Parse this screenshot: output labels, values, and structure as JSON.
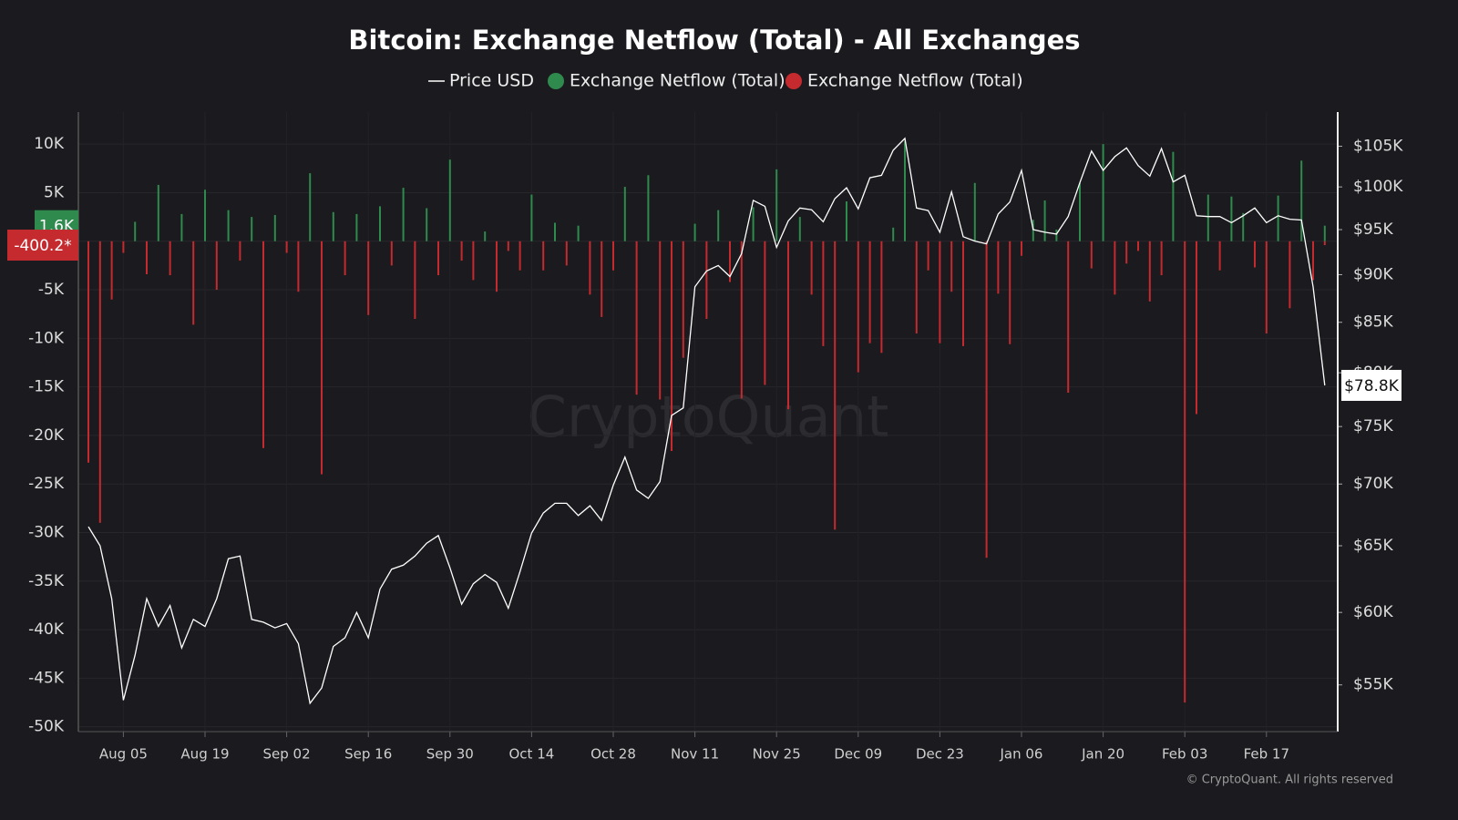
{
  "chart_data": {
    "type": "bar",
    "title": "Bitcoin: Exchange Netflow (Total) - All Exchanges",
    "watermark": "CryptoQuant",
    "footer": "© CryptoQuant. All rights reserved",
    "categories": [
      null,
      null,
      null,
      "Aug 05",
      null,
      null,
      null,
      null,
      null,
      null,
      "Aug 19",
      null,
      null,
      null,
      null,
      null,
      null,
      "Sep 02",
      null,
      null,
      null,
      null,
      null,
      null,
      "Sep 16",
      null,
      null,
      null,
      null,
      null,
      null,
      "Sep 30",
      null,
      null,
      null,
      null,
      null,
      null,
      "Oct 14",
      null,
      null,
      null,
      null,
      null,
      null,
      "Oct 28",
      null,
      null,
      null,
      null,
      null,
      null,
      "Nov 11",
      null,
      null,
      null,
      null,
      null,
      null,
      "Nov 25",
      null,
      null,
      null,
      null,
      null,
      null,
      "Dec 09",
      null,
      null,
      null,
      null,
      null,
      null,
      "Dec 23",
      null,
      null,
      null,
      null,
      null,
      null,
      "Jan 06",
      null,
      null,
      null,
      null,
      null,
      null,
      "Jan 20",
      null,
      null,
      null,
      null,
      null,
      null,
      "Feb 03",
      null,
      null,
      null,
      null,
      null,
      null,
      "Feb 17",
      null,
      null,
      null,
      null,
      null
    ],
    "series": [
      {
        "name": "Price USD",
        "type": "line",
        "axis": "y2",
        "color": "#ffffff",
        "values": [
          66500,
          65000,
          61000,
          54000,
          57000,
          61000,
          59000,
          60500,
          57500,
          59500,
          59000,
          61000,
          64000,
          64200,
          59500,
          59300,
          58900,
          59200,
          57800,
          53800,
          54800,
          57600,
          58200,
          60000,
          58200,
          61700,
          63200,
          63500,
          64200,
          65200,
          65800,
          63300,
          60600,
          62100,
          62800,
          62200,
          60300,
          63000,
          66000,
          67600,
          68400,
          68400,
          67400,
          68200,
          67000,
          69900,
          72300,
          69500,
          68800,
          70200,
          76000,
          76700,
          88700,
          90400,
          91000,
          89800,
          92300,
          98400,
          97700,
          93000,
          96000,
          97500,
          97300,
          95900,
          98600,
          99900,
          97400,
          101100,
          101400,
          104500,
          106000,
          97500,
          97200,
          94700,
          99400,
          94200,
          93700,
          93400,
          96800,
          98200,
          102000,
          95000,
          94700,
          94500,
          96500,
          100500,
          104400,
          102000,
          103700,
          104800,
          102600,
          101300,
          104700,
          100600,
          101400,
          96600,
          96500,
          96500,
          95800,
          96600,
          97500,
          95800,
          96600,
          96200,
          96100,
          88700,
          78800
        ],
        "value_labels": [
          null,
          null,
          null,
          null,
          null,
          null,
          null,
          null,
          null,
          null,
          null,
          null,
          null,
          null,
          null,
          null,
          null,
          null,
          null,
          null,
          null,
          null,
          null,
          null,
          null,
          null,
          null,
          null,
          null,
          null,
          null,
          null,
          null,
          null,
          null,
          null,
          null,
          null,
          null,
          null,
          null,
          null,
          null,
          null,
          null,
          null,
          null,
          null,
          null,
          null,
          null,
          null,
          null,
          null,
          null,
          null,
          null,
          null,
          null,
          null,
          null,
          null,
          null,
          null,
          null,
          null,
          null,
          null,
          null,
          null,
          null,
          null,
          null,
          null,
          null,
          null,
          null,
          null,
          null,
          null,
          null,
          null,
          null,
          null,
          null,
          null,
          null,
          null,
          null,
          null,
          null,
          null,
          null,
          null,
          null,
          null,
          null,
          null,
          null,
          null,
          null,
          null,
          null,
          null,
          null,
          null,
          "$78.8K"
        ]
      },
      {
        "name": "Exchange Netflow (Total)",
        "type": "bar",
        "color": "#2f8a4e",
        "values": [
          null,
          null,
          null,
          null,
          2000,
          null,
          5800,
          null,
          2800,
          null,
          5300,
          null,
          3200,
          null,
          2500,
          null,
          2700,
          null,
          null,
          7000,
          null,
          3000,
          null,
          2800,
          null,
          3600,
          null,
          5500,
          null,
          3400,
          null,
          8400,
          null,
          null,
          1000,
          null,
          null,
          null,
          4800,
          null,
          1900,
          null,
          1600,
          null,
          null,
          null,
          5600,
          null,
          6800,
          null,
          null,
          null,
          1800,
          null,
          3200,
          null,
          null,
          3500,
          null,
          7400,
          null,
          2500,
          null,
          null,
          null,
          4100,
          null,
          null,
          null,
          1400,
          10300,
          null,
          null,
          null,
          null,
          null,
          6000,
          null,
          null,
          null,
          null,
          2200,
          4200,
          1200,
          null,
          6000,
          null,
          10000,
          null,
          null,
          null,
          null,
          null,
          9200,
          null,
          null,
          4800,
          null,
          4600,
          2900,
          null,
          null,
          4700,
          null,
          8300,
          null,
          1600
        ],
        "value_labels": [
          null,
          null,
          null,
          null,
          null,
          null,
          null,
          null,
          null,
          null,
          null,
          null,
          null,
          null,
          null,
          null,
          null,
          null,
          null,
          null,
          null,
          null,
          null,
          null,
          null,
          null,
          null,
          null,
          null,
          null,
          null,
          null,
          null,
          null,
          null,
          null,
          null,
          null,
          null,
          null,
          null,
          null,
          null,
          null,
          null,
          null,
          null,
          null,
          null,
          null,
          null,
          null,
          null,
          null,
          null,
          null,
          null,
          null,
          null,
          null,
          null,
          null,
          null,
          null,
          null,
          null,
          null,
          null,
          null,
          null,
          null,
          null,
          null,
          null,
          null,
          null,
          null,
          null,
          null,
          null,
          null,
          null,
          null,
          null,
          null,
          null,
          null,
          null,
          null,
          null,
          null,
          null,
          null,
          null,
          null,
          null,
          null,
          null,
          null,
          null,
          null,
          null,
          null,
          null,
          null,
          null,
          "1.6K"
        ]
      },
      {
        "name": "Exchange Netflow (Total)",
        "type": "bar",
        "color": "#c42a2e",
        "values": [
          -22800,
          -29000,
          -6000,
          -1200,
          null,
          -3400,
          null,
          -3500,
          null,
          -8600,
          null,
          -5000,
          null,
          -2000,
          null,
          -21300,
          null,
          -1200,
          -5200,
          null,
          -24000,
          null,
          -3500,
          null,
          -7600,
          null,
          -2500,
          null,
          -8000,
          null,
          -3500,
          null,
          -2000,
          -4000,
          null,
          -5200,
          -1000,
          -3000,
          null,
          -3000,
          null,
          -2500,
          null,
          -5500,
          -7800,
          -3000,
          null,
          -15800,
          null,
          -16300,
          -21600,
          -12000,
          null,
          -8000,
          null,
          -4200,
          -16200,
          null,
          -14800,
          null,
          -17300,
          null,
          -5500,
          -10800,
          -29700,
          null,
          -13500,
          -10500,
          -11500,
          null,
          null,
          -9500,
          -3000,
          -10500,
          -5200,
          -10800,
          null,
          -32600,
          -5400,
          -10600,
          -1500,
          null,
          null,
          null,
          -15600,
          null,
          -2800,
          null,
          -5500,
          -2300,
          -1000,
          -6200,
          -3500,
          null,
          -47500,
          -17800,
          null,
          -3000,
          null,
          null,
          -2700,
          -9500,
          null,
          -6900,
          null,
          -4000,
          -400.2
        ],
        "value_labels": [
          null,
          null,
          null,
          null,
          null,
          null,
          null,
          null,
          null,
          null,
          null,
          null,
          null,
          null,
          null,
          null,
          null,
          null,
          null,
          null,
          null,
          null,
          null,
          null,
          null,
          null,
          null,
          null,
          null,
          null,
          null,
          null,
          null,
          null,
          null,
          null,
          null,
          null,
          null,
          null,
          null,
          null,
          null,
          null,
          null,
          null,
          null,
          null,
          null,
          null,
          null,
          null,
          null,
          null,
          null,
          null,
          null,
          null,
          null,
          null,
          null,
          null,
          null,
          null,
          null,
          null,
          null,
          null,
          null,
          null,
          null,
          null,
          null,
          null,
          null,
          null,
          null,
          null,
          null,
          null,
          null,
          null,
          null,
          null,
          null,
          null,
          null,
          null,
          null,
          null,
          null,
          null,
          null,
          null,
          null,
          null,
          null,
          null,
          null,
          null,
          null,
          null,
          null,
          null,
          null,
          null,
          "-400.2*"
        ]
      }
    ],
    "ylim": [
      -50500,
      13300
    ],
    "yticks": [
      {
        "value": 10000,
        "label": "10K"
      },
      {
        "value": 5000,
        "label": "5K"
      },
      {
        "value": 0,
        "label": "0"
      },
      {
        "value": -5000,
        "label": "-5K"
      },
      {
        "value": -10000,
        "label": "-10K"
      },
      {
        "value": -15000,
        "label": "-15K"
      },
      {
        "value": -20000,
        "label": "-20K"
      },
      {
        "value": -25000,
        "label": "-25K"
      },
      {
        "value": -30000,
        "label": "-30K"
      },
      {
        "value": -35000,
        "label": "-35K"
      },
      {
        "value": -40000,
        "label": "-40K"
      },
      {
        "value": -45000,
        "label": "-45K"
      },
      {
        "value": -50000,
        "label": "-50K"
      }
    ],
    "y2lim": [
      52000,
      109400
    ],
    "y2log": true,
    "y2ticks": [
      {
        "value": 55000,
        "label": "$55K"
      },
      {
        "value": 60000,
        "label": "$60K"
      },
      {
        "value": 65000,
        "label": "$65K"
      },
      {
        "value": 70000,
        "label": "$70K"
      },
      {
        "value": 75000,
        "label": "$75K"
      },
      {
        "value": 80000,
        "label": "$80K"
      },
      {
        "value": 85000,
        "label": "$85K"
      },
      {
        "value": 90000,
        "label": "$90K"
      },
      {
        "value": 95000,
        "label": "$95K"
      },
      {
        "value": 100000,
        "label": "$100K"
      },
      {
        "value": 105000,
        "label": "$105K"
      }
    ],
    "grid": true
  }
}
